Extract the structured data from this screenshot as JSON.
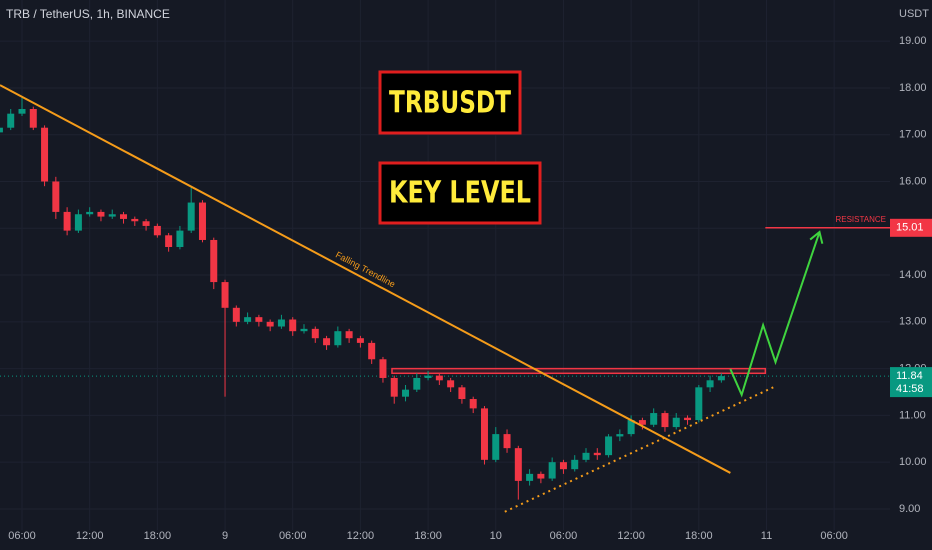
{
  "chart_data": {
    "type": "candlestick",
    "title": "TRB / TetherUS, 1h, BINANCE",
    "currency": "USDT",
    "boxes": [
      "TRBUSDT",
      "KEY LEVEL"
    ],
    "xlim": [
      4.05,
      82.95
    ],
    "ylim": [
      8.55,
      19.88
    ],
    "xticks": [
      {
        "value": 6,
        "label": "06:00"
      },
      {
        "value": 12,
        "label": "12:00"
      },
      {
        "value": 18,
        "label": "18:00"
      },
      {
        "value": 24,
        "label": "9"
      },
      {
        "value": 30,
        "label": "06:00"
      },
      {
        "value": 36,
        "label": "12:00"
      },
      {
        "value": 42,
        "label": "18:00"
      },
      {
        "value": 48,
        "label": "10"
      },
      {
        "value": 54,
        "label": "06:00"
      },
      {
        "value": 60,
        "label": "12:00"
      },
      {
        "value": 66,
        "label": "18:00"
      },
      {
        "value": 72,
        "label": "11"
      },
      {
        "value": 78,
        "label": "06:00"
      }
    ],
    "yticks": [
      {
        "value": 9,
        "label": "9.00"
      },
      {
        "value": 10,
        "label": "10.00"
      },
      {
        "value": 11,
        "label": "11.00"
      },
      {
        "value": 12,
        "label": "12.00"
      },
      {
        "value": 13,
        "label": "13.00"
      },
      {
        "value": 14,
        "label": "14.00"
      },
      {
        "value": 15,
        "label": "15.00"
      },
      {
        "value": 16,
        "label": "16.00"
      },
      {
        "value": 17,
        "label": "17.00"
      },
      {
        "value": 18,
        "label": "18.00"
      },
      {
        "value": 19,
        "label": "19.00"
      }
    ],
    "up_color": "#089981",
    "down_color": "#f23645",
    "x": [
      4,
      5,
      6,
      7,
      8,
      9,
      10,
      11,
      12,
      13,
      14,
      15,
      16,
      17,
      18,
      19,
      20,
      21,
      22,
      23,
      24,
      25,
      26,
      27,
      28,
      29,
      30,
      31,
      32,
      33,
      34,
      35,
      36,
      37,
      38,
      39,
      40,
      41,
      42,
      43,
      44,
      45,
      46,
      47,
      48,
      49,
      50,
      51,
      52,
      53,
      54,
      55,
      56,
      57,
      58,
      59,
      60,
      61,
      62,
      63,
      64,
      65,
      66,
      67,
      68
    ],
    "open": [
      17.05,
      17.15,
      17.45,
      17.55,
      17.15,
      16.0,
      15.35,
      14.95,
      15.3,
      15.35,
      15.25,
      15.3,
      15.2,
      15.15,
      15.05,
      14.85,
      14.6,
      14.95,
      15.55,
      14.75,
      13.85,
      13.3,
      13.0,
      13.1,
      13.0,
      12.9,
      13.05,
      12.8,
      12.85,
      12.65,
      12.5,
      12.8,
      12.65,
      12.55,
      12.2,
      11.8,
      11.4,
      11.55,
      11.8,
      11.85,
      11.75,
      11.6,
      11.35,
      11.15,
      10.05,
      10.6,
      10.3,
      9.6,
      9.75,
      9.65,
      10.0,
      9.85,
      10.05,
      10.2,
      10.15,
      10.55,
      10.6,
      10.9,
      10.8,
      11.05,
      10.75,
      10.95,
      10.9,
      11.6,
      11.75
    ],
    "high": [
      17.25,
      17.55,
      17.8,
      17.6,
      17.2,
      16.1,
      15.45,
      15.4,
      15.45,
      15.4,
      15.4,
      15.35,
      15.25,
      15.2,
      15.1,
      14.9,
      15.05,
      15.9,
      15.6,
      14.8,
      13.9,
      13.35,
      13.2,
      13.15,
      13.05,
      13.15,
      13.1,
      12.95,
      12.9,
      12.7,
      12.9,
      12.85,
      12.7,
      12.6,
      12.25,
      11.85,
      11.65,
      11.9,
      11.95,
      11.9,
      11.8,
      11.65,
      11.4,
      11.2,
      10.75,
      10.7,
      10.35,
      9.85,
      9.8,
      10.1,
      10.05,
      10.15,
      10.3,
      10.3,
      10.6,
      10.7,
      11.0,
      10.95,
      11.15,
      11.1,
      11.05,
      11.0,
      11.65,
      11.85,
      11.9
    ],
    "low": [
      16.95,
      17.1,
      17.4,
      17.1,
      15.9,
      15.2,
      14.85,
      14.9,
      15.25,
      15.15,
      15.2,
      15.1,
      15.05,
      14.95,
      14.8,
      14.5,
      14.55,
      14.9,
      14.7,
      13.7,
      11.4,
      12.9,
      12.95,
      12.9,
      12.8,
      12.85,
      12.7,
      12.75,
      12.55,
      12.4,
      12.45,
      12.55,
      12.45,
      12.1,
      11.7,
      11.25,
      11.3,
      11.5,
      11.75,
      11.65,
      11.5,
      11.25,
      11.05,
      9.95,
      10.0,
      10.2,
      9.2,
      9.5,
      9.55,
      9.6,
      9.75,
      9.8,
      10.0,
      10.05,
      10.1,
      10.45,
      10.55,
      10.7,
      10.75,
      10.65,
      10.7,
      10.8,
      10.85,
      11.5,
      11.7
    ],
    "close": [
      17.15,
      17.45,
      17.55,
      17.15,
      16.0,
      15.35,
      14.95,
      15.3,
      15.35,
      15.25,
      15.3,
      15.2,
      15.15,
      15.05,
      14.85,
      14.6,
      14.95,
      15.55,
      14.75,
      13.85,
      13.3,
      13.0,
      13.1,
      13.0,
      12.9,
      13.05,
      12.8,
      12.85,
      12.65,
      12.5,
      12.8,
      12.65,
      12.55,
      12.2,
      11.8,
      11.4,
      11.55,
      11.8,
      11.85,
      11.75,
      11.6,
      11.35,
      11.15,
      10.05,
      10.6,
      10.3,
      9.6,
      9.75,
      9.65,
      10.0,
      9.85,
      10.05,
      10.2,
      10.15,
      10.55,
      10.6,
      10.9,
      10.8,
      11.05,
      10.75,
      10.95,
      10.9,
      11.6,
      11.75,
      11.84
    ],
    "falling_trendline": {
      "name": "Falling Trendline",
      "color": "#f59c1a",
      "x": [
        4.05,
        68.8
      ],
      "y": [
        18.06,
        9.77
      ]
    },
    "support_trendline": {
      "color": "#f59c1a",
      "x": [
        48.8,
        72.6
      ],
      "y": [
        8.94,
        11.6
      ]
    },
    "key_zone": {
      "color": "#f23645",
      "x": [
        38.8,
        71.9
      ],
      "y": [
        12.0,
        11.9
      ]
    },
    "projection": {
      "color": "#3fd43f",
      "x": [
        68.8,
        69.8,
        71.7,
        72.8,
        76.7
      ],
      "y": [
        11.99,
        11.44,
        12.93,
        12.14,
        14.92
      ]
    },
    "resistance": {
      "name": "RESISTANCE",
      "value": 15.01,
      "x_start": 71.9,
      "color": "#f23645"
    },
    "last_price": {
      "value": 11.84,
      "countdown": "41:58",
      "color": "#089981"
    }
  }
}
